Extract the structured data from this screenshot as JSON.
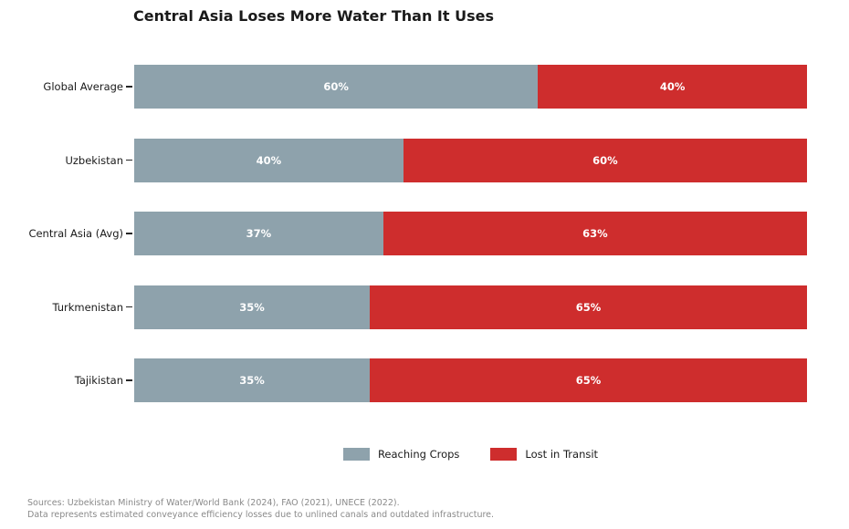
{
  "title": "Central Asia Loses More Water Than It Uses",
  "chart_data": {
    "type": "bar",
    "orientation": "horizontal",
    "stacked": true,
    "categories": [
      "Global Average",
      "Uzbekistan",
      "Central Asia (Avg)",
      "Turkmenistan",
      "Tajikistan"
    ],
    "series": [
      {
        "name": "Reaching Crops",
        "color": "#8EA2AC",
        "values": [
          60,
          40,
          37,
          35,
          35
        ]
      },
      {
        "name": "Lost in Transit",
        "color": "#CE2D2D",
        "values": [
          40,
          60,
          63,
          65,
          65
        ]
      }
    ],
    "value_suffix": "%",
    "xlim": [
      0,
      100
    ],
    "grid": false,
    "legend_position": "bottom-center",
    "bar_label_color": "#ffffff"
  },
  "footer": {
    "line1": "Sources: Uzbekistan Ministry of Water/World Bank (2024), FAO (2021), UNECE (2022).",
    "line2": "Data represents estimated conveyance efficiency losses due to unlined canals and outdated infrastructure."
  }
}
